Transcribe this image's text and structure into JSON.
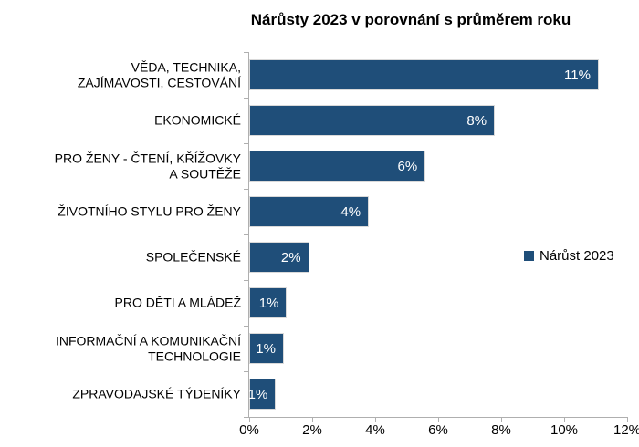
{
  "title": "Nárůsty 2023 v porovnání s průměrem roku",
  "legend": {
    "label": "Nárůst 2023",
    "swatch_color": "#1F4E79"
  },
  "colors": {
    "background": "#FFFFFF",
    "bar_fill": "#1F4E79",
    "bar_border": "#D9D9D9",
    "axis_line": "#AFAFAF",
    "bar_value_text": "#FFFFFF",
    "text": "#000000"
  },
  "chart_data": {
    "type": "bar",
    "orientation": "horizontal",
    "title": "Nárůsty 2023 v porovnání s průměrem roku",
    "series_name": "Nárůst 2023",
    "categories": [
      "VĚDA, TECHNIKA,\nZAJÍMAVOSTI, CESTOVÁNÍ",
      "EKONOMICKÉ",
      "PRO ŽENY - ČTENÍ, KŘÍŽOVKY\nA SOUTĚŽE",
      "ŽIVOTNÍHO STYLU PRO ŽENY",
      "SPOLEČENSKÉ",
      "PRO DĚTI A MLÁDEŽ",
      "INFORMAČNÍ A KOMUNIKAČNÍ\nTECHNOLOGIE",
      "ZPRAVODAJSKÉ TÝDENÍKY"
    ],
    "values": [
      11,
      8,
      6,
      4,
      2,
      1,
      1,
      1
    ],
    "values_precise": [
      11.1,
      7.8,
      5.6,
      3.8,
      1.9,
      1.2,
      1.1,
      0.85
    ],
    "value_labels": [
      "11%",
      "8%",
      "6%",
      "4%",
      "2%",
      "1%",
      "1%",
      "1%"
    ],
    "value_label_position": "inside-end",
    "xlim": [
      0,
      12
    ],
    "x_tick_values": [
      0,
      2,
      4,
      6,
      8,
      10,
      12
    ],
    "x_tick_labels": [
      "0%",
      "2%",
      "4%",
      "6%",
      "8%",
      "10%",
      "12%"
    ],
    "grid": false,
    "legend_position": "right-middle"
  }
}
